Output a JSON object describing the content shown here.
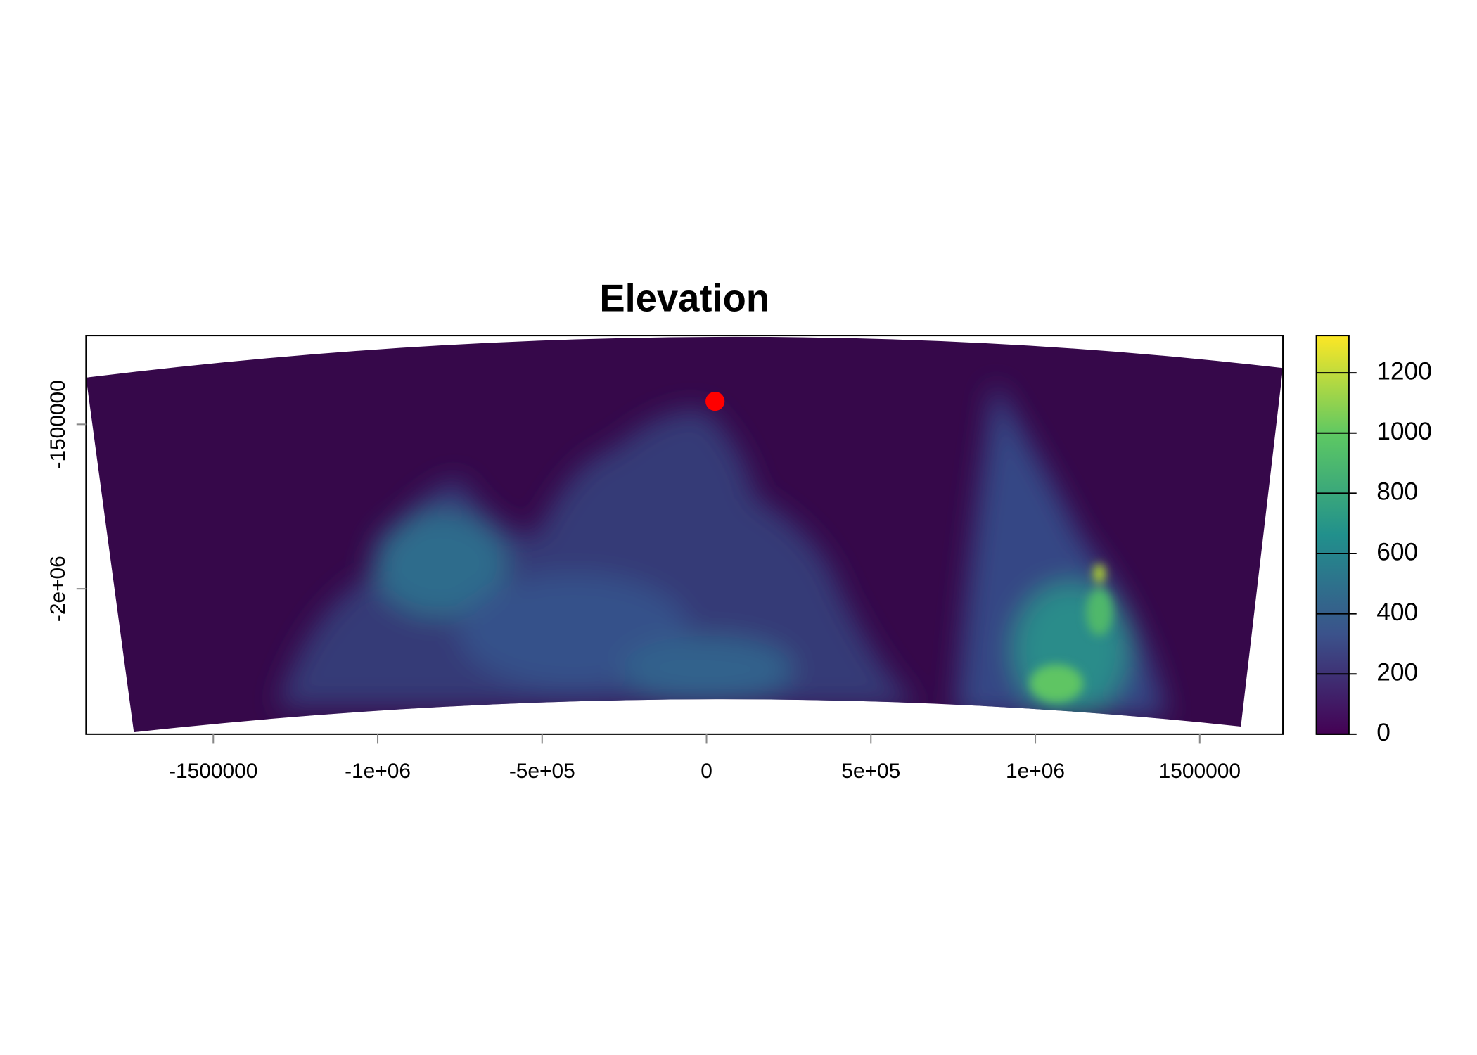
{
  "chart_data": {
    "type": "raster",
    "title": "Elevation",
    "xlim": [
      -1887000,
      1753000
    ],
    "ylim": [
      -2442000,
      -1230000
    ],
    "xticks": [
      -1500000,
      {
        "value": -1000000,
        "label": "-1e+06"
      },
      {
        "value": -500000,
        "label": "-5e+05"
      },
      0,
      {
        "value": 500000,
        "label": "5e+05"
      },
      {
        "value": 1000000,
        "label": "1e+06"
      },
      1500000
    ],
    "yticks": [
      {
        "value": -2000000,
        "label": "-2e+06"
      },
      -1500000
    ],
    "colorbar": {
      "lim": [
        0,
        1324
      ],
      "ticks": [
        0,
        200,
        400,
        600,
        800,
        1000,
        1200
      ]
    },
    "points": {
      "color": "#ff0000",
      "x": [
        26000
      ],
      "y": [
        -1430000
      ]
    }
  }
}
